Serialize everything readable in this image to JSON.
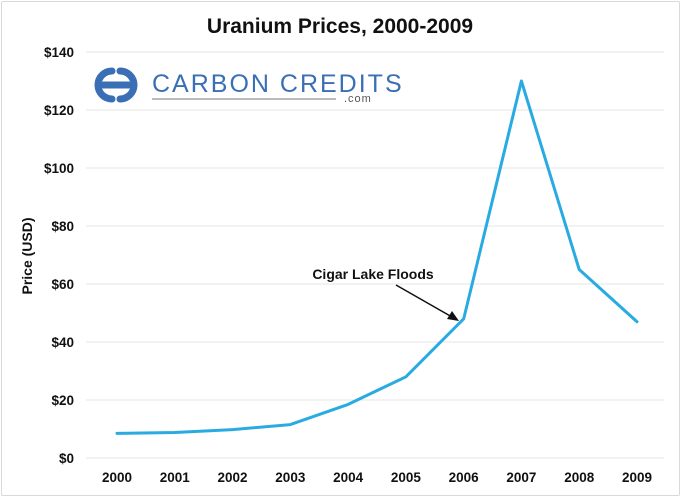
{
  "chart_data": {
    "type": "line",
    "title": "Uranium Prices, 2000-2009",
    "xlabel": "",
    "ylabel": "Price (USD)",
    "x": [
      "2000",
      "2001",
      "2002",
      "2003",
      "2004",
      "2005",
      "2006",
      "2007",
      "2008",
      "2009"
    ],
    "series": [
      {
        "values": [
          8.5,
          8.8,
          9.8,
          11.5,
          18.5,
          28,
          48,
          130,
          65,
          47
        ]
      }
    ],
    "ylim": [
      0,
      140
    ],
    "yticks": [
      0,
      20,
      40,
      60,
      80,
      100,
      120,
      140
    ],
    "ytick_labels": [
      "$0",
      "$20",
      "$40",
      "$60",
      "$80",
      "$100",
      "$120",
      "$140"
    ],
    "grid": "horizontal",
    "line_color": "#29abe2",
    "annotations": [
      {
        "text": "Cigar Lake Floods",
        "x": "2006",
        "y": 48
      }
    ]
  },
  "logo": {
    "text": "CARBON CREDITS",
    "subtext": ".com",
    "color": "#3a6fb6"
  }
}
